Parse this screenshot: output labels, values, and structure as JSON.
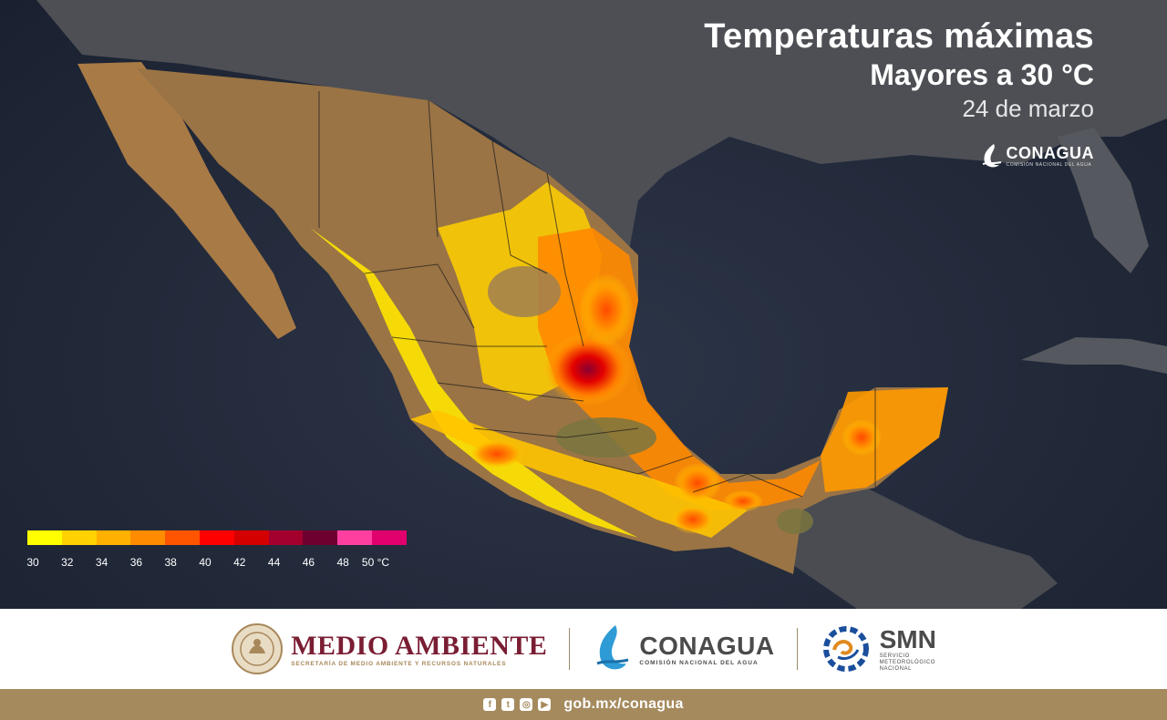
{
  "map": {
    "title": "Temperaturas máximas",
    "subtitle": "Mayores a 30 °C",
    "date": "24 de marzo",
    "logo_name": "CONAGUA",
    "logo_sub": "COMISIÓN NACIONAL DEL AGUA"
  },
  "legend": {
    "unit": "°C",
    "labels": [
      "30",
      "32",
      "34",
      "36",
      "38",
      "40",
      "42",
      "44",
      "46",
      "48",
      "50 °C"
    ],
    "colors": [
      "#ffff00",
      "#ffd200",
      "#ffb000",
      "#ff8c00",
      "#ff5500",
      "#ff0000",
      "#d40000",
      "#a3002e",
      "#6e0030",
      "#ff3fa0",
      "#e0006e"
    ]
  },
  "footer": {
    "medio_ambiente": {
      "name": "MEDIO AMBIENTE",
      "sub": "SECRETARÍA DE MEDIO AMBIENTE Y RECURSOS NATURALES"
    },
    "conagua": {
      "name": "CONAGUA",
      "sub": "COMISIÓN NACIONAL DEL AGUA"
    },
    "smn": {
      "name": "SMN",
      "sub": "SERVICIO METEOROLÓGICO NACIONAL"
    }
  },
  "bottom": {
    "url": "gob.mx/conagua",
    "icons": [
      "facebook-icon",
      "twitter-icon",
      "instagram-icon",
      "youtube-icon"
    ]
  }
}
